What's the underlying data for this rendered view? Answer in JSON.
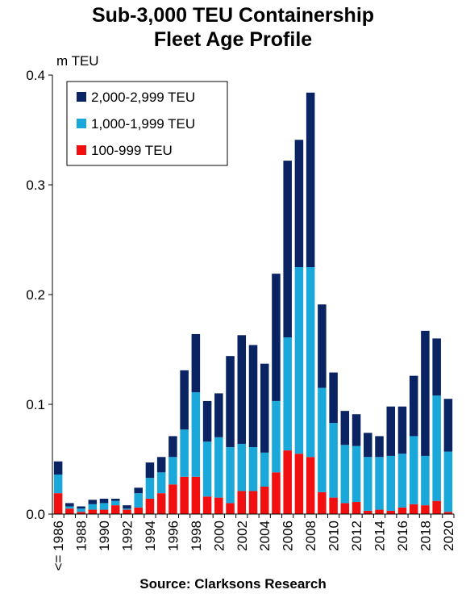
{
  "title_line1": "Sub-3,000 TEU Containership",
  "title_line2": "Fleet Age Profile",
  "source": "Source: Clarksons Research",
  "colors": {
    "large": "#0a2463",
    "medium": "#1aa7d9",
    "small": "#f20f0f"
  },
  "chart_data": {
    "type": "bar",
    "stacked": true,
    "title": "Sub-3,000 TEU Containership Fleet Age Profile",
    "ylabel": "m TEU",
    "ylim": [
      0,
      0.4
    ],
    "yticks": [
      "0.0",
      "0.1",
      "0.2",
      "0.3",
      "0.4"
    ],
    "ytick_values": [
      0,
      0.1,
      0.2,
      0.3,
      0.4
    ],
    "legend_position": "top-left",
    "categories": [
      "<= 1986",
      "1987",
      "1988",
      "1989",
      "1990",
      "1991",
      "1992",
      "1993",
      "1994",
      "1995",
      "1996",
      "1997",
      "1998",
      "1999",
      "2000",
      "2001",
      "2002",
      "2003",
      "2004",
      "2005",
      "2006",
      "2007",
      "2008",
      "2009",
      "2010",
      "2011",
      "2012",
      "2013",
      "2014",
      "2015",
      "2016",
      "2017",
      "2018",
      "2019",
      "2020"
    ],
    "tick_labels": [
      "<= 1986",
      "",
      "1988",
      "",
      "1990",
      "",
      "1992",
      "",
      "1994",
      "",
      "1996",
      "",
      "1998",
      "",
      "2000",
      "",
      "2002",
      "",
      "2004",
      "",
      "2006",
      "",
      "2008",
      "",
      "2010",
      "",
      "2012",
      "",
      "2014",
      "",
      "2016",
      "",
      "2018",
      "",
      "2020"
    ],
    "series": [
      {
        "name": "100-999 TEU",
        "color": "#f20f0f",
        "values": [
          0.019,
          0.005,
          0.002,
          0.004,
          0.004,
          0.008,
          0.004,
          0.006,
          0.014,
          0.019,
          0.027,
          0.034,
          0.034,
          0.016,
          0.015,
          0.01,
          0.021,
          0.021,
          0.025,
          0.038,
          0.058,
          0.055,
          0.052,
          0.02,
          0.015,
          0.01,
          0.011,
          0.003,
          0.004,
          0.003,
          0.006,
          0.009,
          0.008,
          0.012,
          0.002
        ]
      },
      {
        "name": "1,000-1,999 TEU",
        "color": "#1aa7d9",
        "values": [
          0.017,
          0.002,
          0.003,
          0.005,
          0.006,
          0.004,
          0.001,
          0.013,
          0.019,
          0.019,
          0.025,
          0.043,
          0.077,
          0.05,
          0.055,
          0.051,
          0.043,
          0.04,
          0.031,
          0.065,
          0.103,
          0.17,
          0.173,
          0.095,
          0.068,
          0.053,
          0.051,
          0.049,
          0.048,
          0.05,
          0.049,
          0.062,
          0.045,
          0.096,
          0.055
        ]
      },
      {
        "name": "2,000-2,999 TEU",
        "color": "#0a2463",
        "values": [
          0.012,
          0.003,
          0.002,
          0.004,
          0.004,
          0.002,
          0.003,
          0.005,
          0.014,
          0.014,
          0.019,
          0.054,
          0.053,
          0.037,
          0.04,
          0.083,
          0.099,
          0.093,
          0.081,
          0.116,
          0.161,
          0.116,
          0.159,
          0.076,
          0.046,
          0.031,
          0.029,
          0.022,
          0.019,
          0.045,
          0.043,
          0.055,
          0.114,
          0.052,
          0.048
        ]
      }
    ]
  }
}
